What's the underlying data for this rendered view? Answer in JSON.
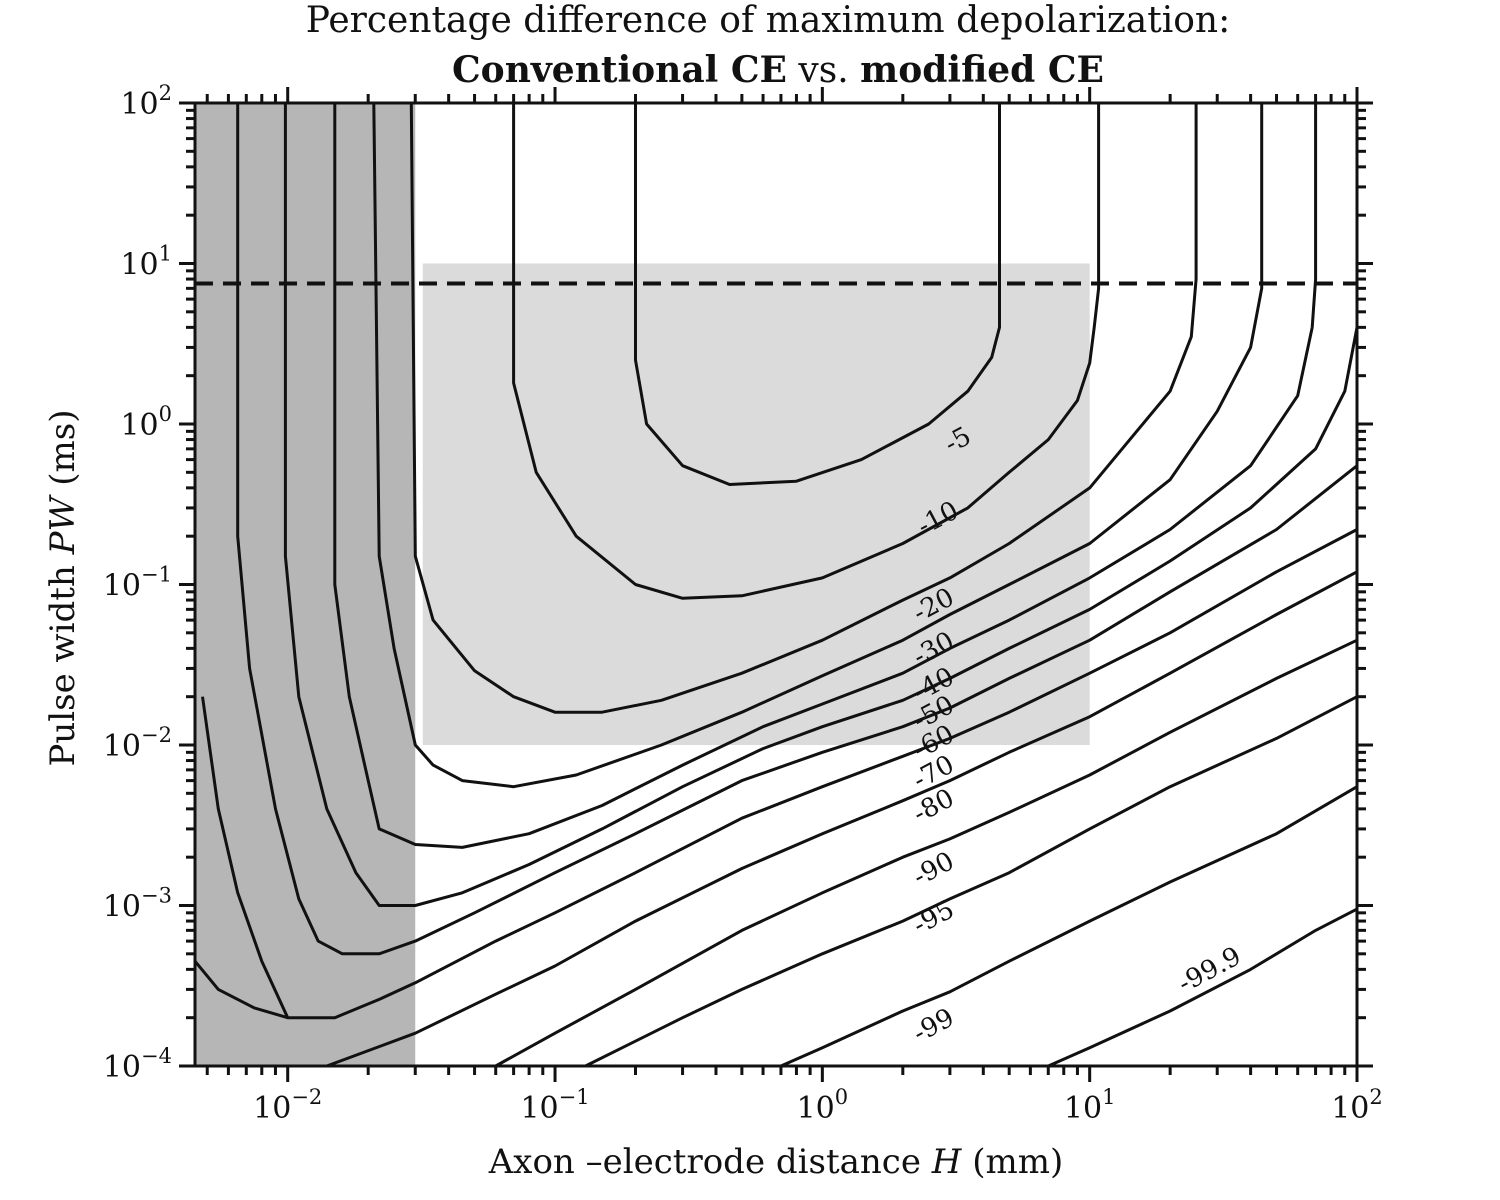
{
  "chart_data": {
    "type": "contour",
    "title_line1": "Percentage difference of maximum depolarization:",
    "title_bold_1": "Conventional CE",
    "title_sep": " vs. ",
    "title_bold_2": "modified CE",
    "xlabel_prefix": "Axon –electrode distance ",
    "xlabel_var": "H",
    "xlabel_unit": " (mm)",
    "ylabel_prefix": "Pulse width ",
    "ylabel_var": "PW",
    "ylabel_unit": " (ms)",
    "x_scale": "log",
    "y_scale": "log",
    "xlim": [
      0.0045,
      100
    ],
    "ylim": [
      0.0001,
      100
    ],
    "x_ticks": [
      {
        "value": 0.01,
        "base": "10",
        "exp": "−2"
      },
      {
        "value": 0.1,
        "base": "10",
        "exp": "−1"
      },
      {
        "value": 1,
        "base": "10",
        "exp": "0"
      },
      {
        "value": 10,
        "base": "10",
        "exp": "1"
      },
      {
        "value": 100,
        "base": "10",
        "exp": "2"
      }
    ],
    "y_ticks": [
      {
        "value": 0.0001,
        "base": "10",
        "exp": "−4"
      },
      {
        "value": 0.001,
        "base": "10",
        "exp": "−3"
      },
      {
        "value": 0.01,
        "base": "10",
        "exp": "−2"
      },
      {
        "value": 0.1,
        "base": "10",
        "exp": "−1"
      },
      {
        "value": 1,
        "base": "10",
        "exp": "0"
      },
      {
        "value": 10,
        "base": "10",
        "exp": "1"
      },
      {
        "value": 100,
        "base": "10",
        "exp": "2"
      }
    ],
    "dashed_line_pw": 7.5,
    "shaded_regions": [
      {
        "name": "small-distance-region",
        "x": [
          0.0045,
          0.03
        ],
        "y": [
          0.0001,
          100
        ],
        "color": "#9e9e9e"
      },
      {
        "name": "central-region",
        "x": [
          0.032,
          10
        ],
        "y": [
          0.01,
          10
        ],
        "color": "#cfcfcf"
      }
    ],
    "contours": [
      {
        "level": "-5",
        "points": [
          [
            0.2,
            100
          ],
          [
            0.2,
            2.5
          ],
          [
            0.22,
            1.0
          ],
          [
            0.3,
            0.55
          ],
          [
            0.45,
            0.42
          ],
          [
            0.8,
            0.44
          ],
          [
            1.4,
            0.6
          ],
          [
            2.5,
            1.0
          ],
          [
            3.5,
            1.6
          ],
          [
            4.3,
            2.6
          ],
          [
            4.6,
            4.0
          ],
          [
            4.6,
            100
          ]
        ],
        "label": {
          "x": 3.2,
          "y": 0.8,
          "text": "-5"
        }
      },
      {
        "level": "-10",
        "points": [
          [
            0.07,
            100
          ],
          [
            0.07,
            1.8
          ],
          [
            0.085,
            0.5
          ],
          [
            0.12,
            0.2
          ],
          [
            0.2,
            0.1
          ],
          [
            0.3,
            0.082
          ],
          [
            0.5,
            0.085
          ],
          [
            1,
            0.11
          ],
          [
            2,
            0.18
          ],
          [
            3.5,
            0.3
          ],
          [
            5,
            0.5
          ],
          [
            7,
            0.8
          ],
          [
            9,
            1.4
          ],
          [
            10,
            2.4
          ],
          [
            10.4,
            4
          ],
          [
            10.8,
            7
          ],
          [
            10.8,
            100
          ]
        ],
        "label": {
          "x": 2.7,
          "y": 0.26,
          "text": "-10"
        }
      },
      {
        "level": "-20",
        "points": [
          [
            0.029,
            100
          ],
          [
            0.03,
            0.15
          ],
          [
            0.035,
            0.06
          ],
          [
            0.05,
            0.029
          ],
          [
            0.07,
            0.02
          ],
          [
            0.1,
            0.016
          ],
          [
            0.15,
            0.016
          ],
          [
            0.25,
            0.019
          ],
          [
            0.5,
            0.028
          ],
          [
            1,
            0.045
          ],
          [
            2,
            0.08
          ],
          [
            3,
            0.11
          ],
          [
            5,
            0.18
          ],
          [
            10,
            0.4
          ],
          [
            15,
            0.9
          ],
          [
            20,
            1.6
          ],
          [
            24,
            3.5
          ],
          [
            25,
            8
          ],
          [
            25,
            100
          ]
        ],
        "label": {
          "x": 2.6,
          "y": 0.075,
          "text": "-20"
        }
      },
      {
        "level": "-30",
        "points": [
          [
            0.021,
            100
          ],
          [
            0.022,
            0.15
          ],
          [
            0.025,
            0.04
          ],
          [
            0.03,
            0.01
          ],
          [
            0.035,
            0.0075
          ],
          [
            0.045,
            0.006
          ],
          [
            0.07,
            0.0055
          ],
          [
            0.12,
            0.0065
          ],
          [
            0.25,
            0.01
          ],
          [
            0.5,
            0.016
          ],
          [
            1,
            0.027
          ],
          [
            2,
            0.045
          ],
          [
            3,
            0.065
          ],
          [
            5,
            0.1
          ],
          [
            10,
            0.18
          ],
          [
            20,
            0.45
          ],
          [
            30,
            1.2
          ],
          [
            40,
            3
          ],
          [
            44,
            7
          ],
          [
            44,
            100
          ]
        ],
        "label": {
          "x": 2.6,
          "y": 0.04,
          "text": "-30"
        }
      },
      {
        "level": "-40",
        "points": [
          [
            0.015,
            100
          ],
          [
            0.015,
            0.1
          ],
          [
            0.017,
            0.02
          ],
          [
            0.02,
            0.006
          ],
          [
            0.022,
            0.003
          ],
          [
            0.03,
            0.0024
          ],
          [
            0.045,
            0.0023
          ],
          [
            0.08,
            0.0028
          ],
          [
            0.15,
            0.0042
          ],
          [
            0.3,
            0.0075
          ],
          [
            0.6,
            0.013
          ],
          [
            1,
            0.018
          ],
          [
            2,
            0.028
          ],
          [
            3,
            0.04
          ],
          [
            5,
            0.06
          ],
          [
            10,
            0.11
          ],
          [
            20,
            0.22
          ],
          [
            40,
            0.55
          ],
          [
            60,
            1.5
          ],
          [
            68,
            4
          ],
          [
            70,
            8
          ],
          [
            70,
            100
          ]
        ],
        "label": {
          "x": 2.6,
          "y": 0.024,
          "text": "-40"
        }
      },
      {
        "level": "-50",
        "points": [
          [
            0.0098,
            100
          ],
          [
            0.0098,
            0.15
          ],
          [
            0.011,
            0.02
          ],
          [
            0.014,
            0.004
          ],
          [
            0.018,
            0.0016
          ],
          [
            0.022,
            0.001
          ],
          [
            0.03,
            0.001
          ],
          [
            0.045,
            0.0012
          ],
          [
            0.08,
            0.0018
          ],
          [
            0.15,
            0.003
          ],
          [
            0.3,
            0.0055
          ],
          [
            0.6,
            0.0095
          ],
          [
            1,
            0.013
          ],
          [
            2,
            0.019
          ],
          [
            3,
            0.026
          ],
          [
            5,
            0.04
          ],
          [
            10,
            0.07
          ],
          [
            20,
            0.14
          ],
          [
            40,
            0.3
          ],
          [
            70,
            0.7
          ],
          [
            90,
            1.6
          ],
          [
            100,
            4
          ]
        ],
        "label": {
          "x": 2.6,
          "y": 0.016,
          "text": "-50"
        }
      },
      {
        "level": "-60",
        "points": [
          [
            0.0065,
            100
          ],
          [
            0.0065,
            0.2
          ],
          [
            0.0072,
            0.03
          ],
          [
            0.009,
            0.004
          ],
          [
            0.011,
            0.0011
          ],
          [
            0.013,
            0.0006
          ],
          [
            0.016,
            0.0005
          ],
          [
            0.022,
            0.0005
          ],
          [
            0.03,
            0.0006
          ],
          [
            0.05,
            0.0009
          ],
          [
            0.1,
            0.0016
          ],
          [
            0.2,
            0.0028
          ],
          [
            0.5,
            0.006
          ],
          [
            1,
            0.009
          ],
          [
            2,
            0.013
          ],
          [
            3,
            0.017
          ],
          [
            5,
            0.026
          ],
          [
            10,
            0.045
          ],
          [
            20,
            0.09
          ],
          [
            50,
            0.22
          ],
          [
            100,
            0.55
          ]
        ],
        "label": {
          "x": 2.6,
          "y": 0.0105,
          "text": "-60"
        }
      },
      {
        "level": "-70",
        "points": [
          [
            0.0048,
            0.02
          ],
          [
            0.0055,
            0.004
          ],
          [
            0.0065,
            0.0012
          ],
          [
            0.008,
            0.00045
          ],
          [
            0.01,
            0.0002
          ],
          [
            0.015,
            0.0002
          ],
          [
            0.022,
            0.00026
          ],
          [
            0.03,
            0.00033
          ],
          [
            0.06,
            0.0006
          ],
          [
            0.1,
            0.0009
          ],
          [
            0.2,
            0.0016
          ],
          [
            0.5,
            0.0035
          ],
          [
            1,
            0.0055
          ],
          [
            2,
            0.0085
          ],
          [
            3,
            0.011
          ],
          [
            5,
            0.016
          ],
          [
            10,
            0.028
          ],
          [
            20,
            0.05
          ],
          [
            50,
            0.12
          ],
          [
            100,
            0.22
          ]
        ],
        "label": {
          "x": 2.6,
          "y": 0.0068,
          "text": "-70"
        }
      },
      {
        "level": "-80",
        "points": [
          [
            0.0045,
            0.00045
          ],
          [
            0.0055,
            0.0003
          ],
          [
            0.0075,
            0.00023
          ],
          [
            0.01,
            0.0002
          ]
        ],
        "label": null
      },
      {
        "level": "-80b",
        "points": [
          [
            0.014,
            0.0001
          ],
          [
            0.03,
            0.00016
          ],
          [
            0.06,
            0.00028
          ],
          [
            0.1,
            0.00042
          ],
          [
            0.2,
            0.0008
          ],
          [
            0.5,
            0.0017
          ],
          [
            1,
            0.0028
          ],
          [
            2,
            0.0045
          ],
          [
            3,
            0.006
          ],
          [
            5,
            0.009
          ],
          [
            10,
            0.015
          ],
          [
            20,
            0.028
          ],
          [
            50,
            0.065
          ],
          [
            100,
            0.12
          ]
        ],
        "label": {
          "x": 2.6,
          "y": 0.0042,
          "text": "-80"
        }
      },
      {
        "level": "-90",
        "points": [
          [
            0.06,
            0.0001
          ],
          [
            0.1,
            0.00016
          ],
          [
            0.2,
            0.0003
          ],
          [
            0.5,
            0.0007
          ],
          [
            1,
            0.0012
          ],
          [
            2,
            0.002
          ],
          [
            3,
            0.0026
          ],
          [
            5,
            0.0038
          ],
          [
            10,
            0.0065
          ],
          [
            20,
            0.012
          ],
          [
            50,
            0.026
          ],
          [
            100,
            0.045
          ]
        ],
        "label": {
          "x": 2.6,
          "y": 0.0017,
          "text": "-90"
        }
      },
      {
        "level": "-95",
        "points": [
          [
            0.13,
            0.0001
          ],
          [
            0.3,
            0.0002
          ],
          [
            0.5,
            0.0003
          ],
          [
            1,
            0.0005
          ],
          [
            2,
            0.0008
          ],
          [
            3,
            0.0011
          ],
          [
            5,
            0.0016
          ],
          [
            10,
            0.003
          ],
          [
            20,
            0.0055
          ],
          [
            50,
            0.011
          ],
          [
            100,
            0.02
          ]
        ],
        "label": {
          "x": 2.6,
          "y": 0.00085,
          "text": "-95"
        }
      },
      {
        "level": "-99",
        "points": [
          [
            0.7,
            0.0001
          ],
          [
            1,
            0.00013
          ],
          [
            2,
            0.00022
          ],
          [
            3,
            0.00029
          ],
          [
            5,
            0.00045
          ],
          [
            10,
            0.0008
          ],
          [
            20,
            0.0014
          ],
          [
            50,
            0.0028
          ],
          [
            100,
            0.0055
          ]
        ],
        "label": {
          "x": 2.6,
          "y": 0.00018,
          "text": "-99"
        }
      },
      {
        "level": "-99.9",
        "points": [
          [
            7,
            0.0001
          ],
          [
            10,
            0.00013
          ],
          [
            20,
            0.00022
          ],
          [
            40,
            0.0004
          ],
          [
            70,
            0.0007
          ],
          [
            100,
            0.00095
          ]
        ],
        "label": {
          "x": 28,
          "y": 0.0004,
          "text": "-99.9"
        }
      }
    ]
  }
}
